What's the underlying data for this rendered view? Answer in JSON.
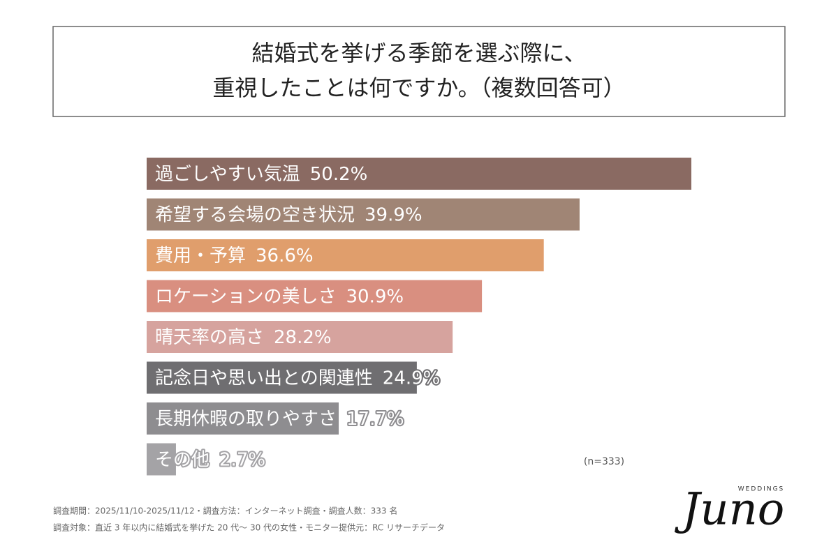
{
  "chart_data": {
    "type": "hbar",
    "title": [
      "結婚式を挙げる季節を選ぶ際に、",
      "重視したことは何ですか。（複数回答可）"
    ],
    "categories": [
      "過ごしやすい気温",
      "希望する会場の空き状況",
      "費用・予算",
      "ロケーションの美しさ",
      "晴天率の高さ",
      "記念日や思い出との関連性",
      "長期休暇の取りやすさ",
      "その他"
    ],
    "values": [
      50.2,
      39.9,
      36.6,
      30.9,
      28.2,
      24.9,
      17.7,
      2.7
    ],
    "value_labels": [
      "50.2%",
      "39.9%",
      "36.6%",
      "30.9%",
      "28.2%",
      "24.9%",
      "17.7%",
      "2.7%"
    ],
    "colors": [
      "#8a6a62",
      "#a08575",
      "#e09e6c",
      "#d98f80",
      "#d6a39e",
      "#6f6e71",
      "#8e8d90",
      "#a4a3a6"
    ],
    "note": "(n=333)",
    "footnotes": [
      "調査期間：2025/11/10-2025/11/12・調査方法：インターネット調査・調査人数：333 名",
      "調査対象：直近 3 年以内に結婚式を挙げた 20 代〜 30 代の女性・モニター提供元：RC リサーチデータ"
    ],
    "logo": {
      "name": "Juno",
      "tagline": "WEDDINGS"
    }
  }
}
